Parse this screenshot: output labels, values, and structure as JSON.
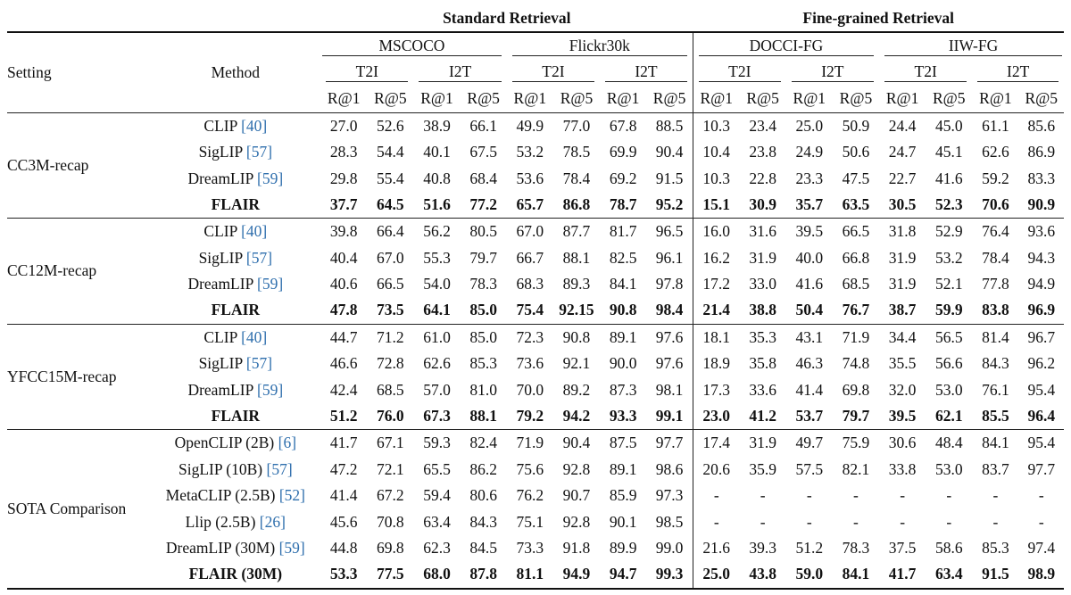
{
  "headers": {
    "standard": "Standard Retrieval",
    "finegrained": "Fine-grained Retrieval",
    "setting": "Setting",
    "method": "Method",
    "datasets": [
      "MSCOCO",
      "Flickr30k",
      "DOCCI-FG",
      "IIW-FG"
    ],
    "directions": [
      "T2I",
      "I2T"
    ],
    "metrics": [
      "R@1",
      "R@5"
    ]
  },
  "groups": [
    {
      "setting": "CC3M-recap",
      "rows": [
        {
          "method": "CLIP ",
          "cite": "[40]",
          "bold": false,
          "values": [
            "27.0",
            "52.6",
            "38.9",
            "66.1",
            "49.9",
            "77.0",
            "67.8",
            "88.5",
            "10.3",
            "23.4",
            "25.0",
            "50.9",
            "24.4",
            "45.0",
            "61.1",
            "85.6"
          ]
        },
        {
          "method": "SigLIP ",
          "cite": "[57]",
          "bold": false,
          "values": [
            "28.3",
            "54.4",
            "40.1",
            "67.5",
            "53.2",
            "78.5",
            "69.9",
            "90.4",
            "10.4",
            "23.8",
            "24.9",
            "50.6",
            "24.7",
            "45.1",
            "62.6",
            "86.9"
          ]
        },
        {
          "method": "DreamLIP ",
          "cite": "[59]",
          "bold": false,
          "values": [
            "29.8",
            "55.4",
            "40.8",
            "68.4",
            "53.6",
            "78.4",
            "69.2",
            "91.5",
            "10.3",
            "22.8",
            "23.3",
            "47.5",
            "22.7",
            "41.6",
            "59.2",
            "83.3"
          ]
        },
        {
          "method": "FLAIR",
          "cite": "",
          "bold": true,
          "values": [
            "37.7",
            "64.5",
            "51.6",
            "77.2",
            "65.7",
            "86.8",
            "78.7",
            "95.2",
            "15.1",
            "30.9",
            "35.7",
            "63.5",
            "30.5",
            "52.3",
            "70.6",
            "90.9"
          ]
        }
      ]
    },
    {
      "setting": "CC12M-recap",
      "rows": [
        {
          "method": "CLIP ",
          "cite": "[40]",
          "bold": false,
          "values": [
            "39.8",
            "66.4",
            "56.2",
            "80.5",
            "67.0",
            "87.7",
            "81.7",
            "96.5",
            "16.0",
            "31.6",
            "39.5",
            "66.5",
            "31.8",
            "52.9",
            "76.4",
            "93.6"
          ]
        },
        {
          "method": "SigLIP ",
          "cite": "[57]",
          "bold": false,
          "values": [
            "40.4",
            "67.0",
            "55.3",
            "79.7",
            "66.7",
            "88.1",
            "82.5",
            "96.1",
            "16.2",
            "31.9",
            "40.0",
            "66.8",
            "31.9",
            "53.2",
            "78.4",
            "94.3"
          ]
        },
        {
          "method": "DreamLIP ",
          "cite": "[59]",
          "bold": false,
          "values": [
            "40.6",
            "66.5",
            "54.0",
            "78.3",
            "68.3",
            "89.3",
            "84.1",
            "97.8",
            "17.2",
            "33.0",
            "41.6",
            "68.5",
            "31.9",
            "52.1",
            "77.8",
            "94.9"
          ]
        },
        {
          "method": "FLAIR",
          "cite": "",
          "bold": true,
          "values": [
            "47.8",
            "73.5",
            "64.1",
            "85.0",
            "75.4",
            "92.15",
            "90.8",
            "98.4",
            "21.4",
            "38.8",
            "50.4",
            "76.7",
            "38.7",
            "59.9",
            "83.8",
            "96.9"
          ]
        }
      ]
    },
    {
      "setting": "YFCC15M-recap",
      "rows": [
        {
          "method": "CLIP ",
          "cite": "[40]",
          "bold": false,
          "values": [
            "44.7",
            "71.2",
            "61.0",
            "85.0",
            "72.3",
            "90.8",
            "89.1",
            "97.6",
            "18.1",
            "35.3",
            "43.1",
            "71.9",
            "34.4",
            "56.5",
            "81.4",
            "96.7"
          ]
        },
        {
          "method": "SigLIP ",
          "cite": "[57]",
          "bold": false,
          "values": [
            "46.6",
            "72.8",
            "62.6",
            "85.3",
            "73.6",
            "92.1",
            "90.0",
            "97.6",
            "18.9",
            "35.8",
            "46.3",
            "74.8",
            "35.5",
            "56.6",
            "84.3",
            "96.2"
          ]
        },
        {
          "method": "DreamLIP ",
          "cite": "[59]",
          "bold": false,
          "values": [
            "42.4",
            "68.5",
            "57.0",
            "81.0",
            "70.0",
            "89.2",
            "87.3",
            "98.1",
            "17.3",
            "33.6",
            "41.4",
            "69.8",
            "32.0",
            "53.0",
            "76.1",
            "95.4"
          ]
        },
        {
          "method": "FLAIR",
          "cite": "",
          "bold": true,
          "values": [
            "51.2",
            "76.0",
            "67.3",
            "88.1",
            "79.2",
            "94.2",
            "93.3",
            "99.1",
            "23.0",
            "41.2",
            "53.7",
            "79.7",
            "39.5",
            "62.1",
            "85.5",
            "96.4"
          ]
        }
      ]
    },
    {
      "setting": "SOTA Comparison",
      "rows": [
        {
          "method": "OpenCLIP (2B) ",
          "cite": "[6]",
          "bold": false,
          "values": [
            "41.7",
            "67.1",
            "59.3",
            "82.4",
            "71.9",
            "90.4",
            "87.5",
            "97.7",
            "17.4",
            "31.9",
            "49.7",
            "75.9",
            "30.6",
            "48.4",
            "84.1",
            "95.4"
          ]
        },
        {
          "method": "SigLIP (10B) ",
          "cite": "[57]",
          "bold": false,
          "values": [
            "47.2",
            "72.1",
            "65.5",
            "86.2",
            "75.6",
            "92.8",
            "89.1",
            "98.6",
            "20.6",
            "35.9",
            "57.5",
            "82.1",
            "33.8",
            "53.0",
            "83.7",
            "97.7"
          ]
        },
        {
          "method": "MetaCLIP (2.5B) ",
          "cite": "[52]",
          "bold": false,
          "values": [
            "41.4",
            "67.2",
            "59.4",
            "80.6",
            "76.2",
            "90.7",
            "85.9",
            "97.3",
            "-",
            "-",
            "-",
            "-",
            "-",
            "-",
            "-",
            "-"
          ]
        },
        {
          "method": "Llip (2.5B) ",
          "cite": "[26]",
          "bold": false,
          "values": [
            "45.6",
            "70.8",
            "63.4",
            "84.3",
            "75.1",
            "92.8",
            "90.1",
            "98.5",
            "-",
            "-",
            "-",
            "-",
            "-",
            "-",
            "-",
            "-"
          ]
        },
        {
          "method": "DreamLIP (30M) ",
          "cite": "[59]",
          "bold": false,
          "values": [
            "44.8",
            "69.8",
            "62.3",
            "84.5",
            "73.3",
            "91.8",
            "89.9",
            "99.0",
            "21.6",
            "39.3",
            "51.2",
            "78.3",
            "37.5",
            "58.6",
            "85.3",
            "97.4"
          ]
        },
        {
          "method": "FLAIR (30M)",
          "cite": "",
          "bold": true,
          "values": [
            "53.3",
            "77.5",
            "68.0",
            "87.8",
            "81.1",
            "94.9",
            "94.7",
            "99.3",
            "25.0",
            "43.8",
            "59.0",
            "84.1",
            "41.7",
            "63.4",
            "91.5",
            "98.9"
          ]
        }
      ]
    }
  ]
}
